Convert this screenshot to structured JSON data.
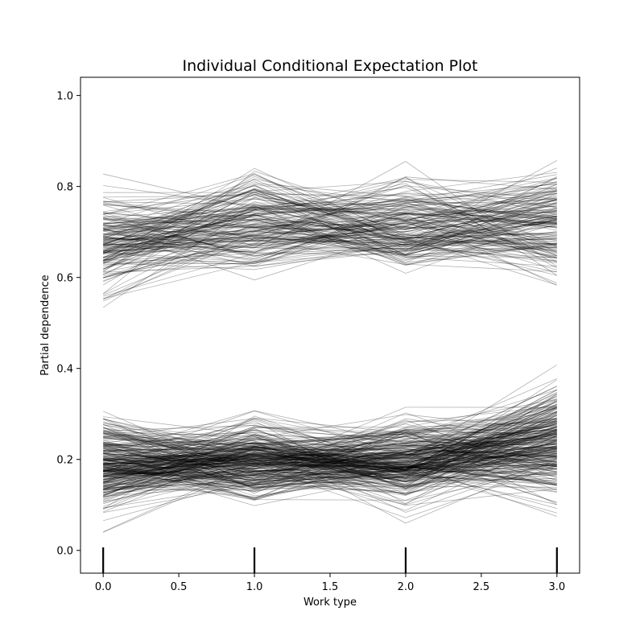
{
  "chart_data": {
    "type": "line",
    "title": "Individual Conditional Expectation Plot",
    "xlabel": "Work type",
    "ylabel": "Partial dependence",
    "xlim": [
      -0.15,
      3.15
    ],
    "ylim": [
      -0.05,
      1.04
    ],
    "x": [
      0,
      1,
      2,
      3
    ],
    "xticks": [
      "0.0",
      "0.5",
      "1.0",
      "1.5",
      "2.0",
      "2.5",
      "3.0"
    ],
    "yticks": [
      "0.0",
      "0.2",
      "0.4",
      "0.6",
      "0.8",
      "1.0"
    ],
    "rug_positions": [
      0,
      1,
      2,
      3
    ],
    "grid": false,
    "line_color": "#000000",
    "line_alpha": 0.3,
    "series_groups": [
      {
        "group": "upper",
        "count": 180,
        "value_range_at_x0": [
          0.47,
          0.88
        ],
        "value_range_at_x1": [
          0.52,
          0.92
        ],
        "value_range_at_x2": [
          0.53,
          0.9
        ],
        "value_range_at_x3": [
          0.51,
          0.93
        ]
      },
      {
        "group": "lower",
        "count": 300,
        "value_range_at_x0": [
          0.01,
          0.36
        ],
        "value_range_at_x1": [
          0.04,
          0.35
        ],
        "value_range_at_x2": [
          0.04,
          0.35
        ],
        "value_range_at_x3": [
          0.02,
          0.45
        ]
      }
    ]
  }
}
